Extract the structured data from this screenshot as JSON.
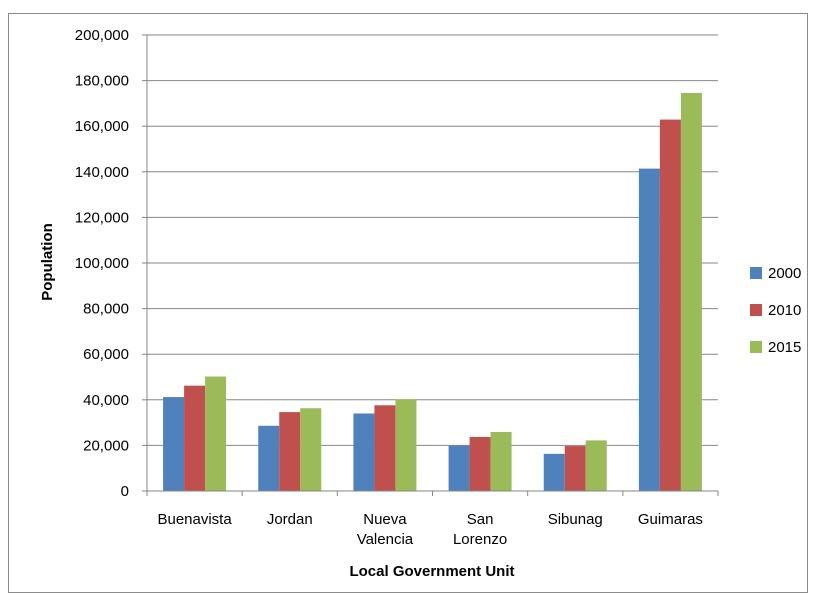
{
  "chart_data": {
    "type": "bar",
    "categories": [
      [
        "Buenavista"
      ],
      [
        "Jordan"
      ],
      [
        "Nueva",
        "Valencia"
      ],
      [
        "San",
        "Lorenzo"
      ],
      [
        "Sibunag"
      ],
      [
        "Guimaras"
      ]
    ],
    "series": [
      {
        "name": "2000",
        "color": "#4f81bd",
        "values": [
          41200,
          28600,
          34000,
          19900,
          16300,
          141400
        ]
      },
      {
        "name": "2010",
        "color": "#c0504d",
        "values": [
          46200,
          34600,
          37600,
          23700,
          19700,
          162900
        ]
      },
      {
        "name": "2015",
        "color": "#9bbb59",
        "values": [
          50200,
          36300,
          40200,
          25900,
          22200,
          174600
        ]
      }
    ],
    "xlabel": "Local Government Unit",
    "ylabel": "Population",
    "ylim": [
      0,
      200000
    ],
    "yticks": [
      "0",
      "20,000",
      "40,000",
      "60,000",
      "80,000",
      "100,000",
      "120,000",
      "140,000",
      "160,000",
      "180,000",
      "200,000"
    ],
    "grid": true,
    "legend_position": "right"
  }
}
